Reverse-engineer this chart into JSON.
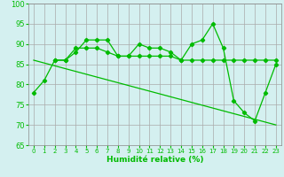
{
  "xlabel": "Humidité relative (%)",
  "bg_color": "#d4f0f0",
  "line_color": "#00bb00",
  "grid_color": "#aaaaaa",
  "xlim": [
    -0.5,
    23.5
  ],
  "ylim": [
    65,
    100
  ],
  "yticks": [
    65,
    70,
    75,
    80,
    85,
    90,
    95,
    100
  ],
  "xticks": [
    0,
    1,
    2,
    3,
    4,
    5,
    6,
    7,
    8,
    9,
    10,
    11,
    12,
    13,
    14,
    15,
    16,
    17,
    18,
    19,
    20,
    21,
    22,
    23
  ],
  "series1": {
    "x": [
      0,
      1,
      2,
      3,
      4,
      5,
      6,
      7,
      8,
      9,
      10,
      11,
      12,
      13,
      14,
      15,
      16,
      17,
      18,
      19,
      20,
      21,
      22,
      23
    ],
    "y": [
      78,
      81,
      86,
      86,
      88,
      91,
      91,
      91,
      87,
      87,
      90,
      89,
      89,
      88,
      86,
      90,
      91,
      95,
      89,
      76,
      73,
      71,
      78,
      85
    ]
  },
  "series2": {
    "x": [
      2,
      3,
      4,
      5,
      6,
      7,
      8,
      9,
      10,
      11,
      12,
      13,
      14,
      15,
      16,
      17,
      18,
      19,
      20,
      21,
      22,
      23
    ],
    "y": [
      86,
      86,
      89,
      89,
      89,
      88,
      87,
      87,
      87,
      87,
      87,
      87,
      86,
      86,
      86,
      86,
      86,
      86,
      86,
      86,
      86,
      86
    ]
  },
  "series3": {
    "x": [
      0,
      23
    ],
    "y": [
      86,
      70
    ]
  }
}
